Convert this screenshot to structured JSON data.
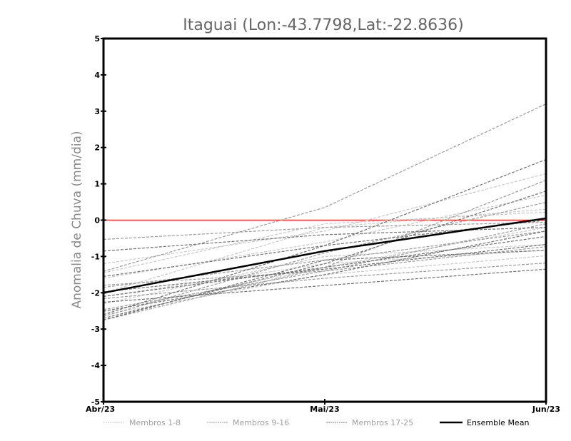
{
  "chart_data": {
    "type": "line",
    "title": "Itaguai (Lon:-43.7798,Lat:-22.8636)",
    "xlabel": "",
    "ylabel": "Anomalia de Chuva (mm/dia)",
    "categories": [
      "Abr/23",
      "Mai/23",
      "Jun/23"
    ],
    "ylim": [
      -5,
      5
    ],
    "yticks": [
      "-5",
      "-4",
      "-3",
      "-2",
      "-1",
      "0",
      "1",
      "2",
      "3",
      "4",
      "5"
    ],
    "reference_line": {
      "value": 0,
      "color": "#ff3030"
    },
    "legend_position": "bottom",
    "groups": [
      {
        "name": "Membros 1-8",
        "color": "#c8c8c8",
        "series": [
          [
            -1.2,
            -0.3,
            1.28
          ],
          [
            -1.45,
            -0.1,
            0.22
          ],
          [
            -2.1,
            -1.2,
            -0.83
          ],
          [
            -2.53,
            -1.3,
            -0.2
          ],
          [
            -1.6,
            -0.6,
            0.69
          ],
          [
            -2.6,
            -1.5,
            -0.98
          ],
          [
            -2.0,
            -0.2,
            0.3
          ],
          [
            -2.3,
            -1.0,
            -0.67
          ]
        ]
      },
      {
        "name": "Membros 9-16",
        "color": "#9a9a9a",
        "series": [
          [
            -1.41,
            0.35,
            3.2
          ],
          [
            -2.75,
            -1.3,
            1.1
          ],
          [
            -0.53,
            -0.2,
            -0.06
          ],
          [
            -2.46,
            -1.4,
            -0.73
          ],
          [
            -1.85,
            -1.1,
            -0.3
          ],
          [
            -2.16,
            -1.6,
            -1.18
          ],
          [
            -2.65,
            -0.9,
            0.49
          ],
          [
            -1.79,
            -1.4,
            -0.1
          ]
        ]
      },
      {
        "name": "Membros 17-25",
        "color": "#707070",
        "series": [
          [
            -2.6,
            -0.7,
            1.67
          ],
          [
            -0.85,
            -0.4,
            -0.2
          ],
          [
            -2.26,
            -1.8,
            -1.35
          ],
          [
            -2.7,
            -1.2,
            0.8
          ],
          [
            -1.97,
            -1.35,
            -0.67
          ],
          [
            -2.5,
            -1.5,
            -0.3
          ],
          [
            -1.55,
            -0.7,
            0.0
          ],
          [
            -2.1,
            -1.3,
            -0.45
          ],
          [
            -2.75,
            -1.1,
            -0.83
          ]
        ]
      }
    ],
    "mean": {
      "name": "Ensemble Mean",
      "color": "#000000",
      "values": [
        -2.0,
        -0.85,
        0.05
      ]
    }
  }
}
